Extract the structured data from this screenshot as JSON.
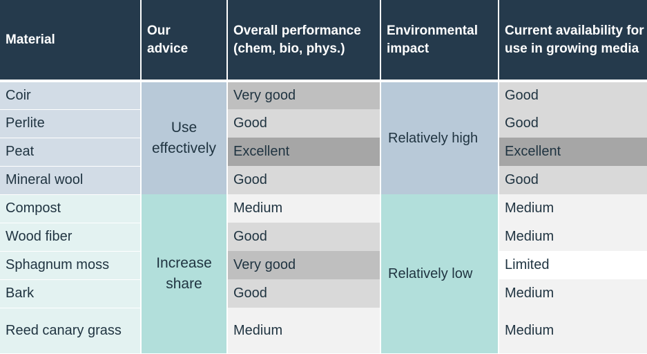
{
  "headers": {
    "material": "Material",
    "advice": "Our advice",
    "performance": "Overall performance (chem, bio, phys.)",
    "impact": "Environmental impact",
    "availability": "Current availability for use in growing media"
  },
  "groups": [
    {
      "advice": "Use effectively",
      "impact": "Relatively high",
      "rows": [
        {
          "material": "Coir",
          "performance": "Very good",
          "availability": "Good"
        },
        {
          "material": "Perlite",
          "performance": "Good",
          "availability": "Good"
        },
        {
          "material": "Peat",
          "performance": "Excellent",
          "availability": "Excellent"
        },
        {
          "material": "Mineral wool",
          "performance": "Good",
          "availability": "Good"
        }
      ]
    },
    {
      "advice": "Increase share",
      "impact": "Relatively low",
      "rows": [
        {
          "material": "Compost",
          "performance": "Medium",
          "availability": "Medium"
        },
        {
          "material": "Wood fiber",
          "performance": "Good",
          "availability": "Medium"
        },
        {
          "material": "Sphagnum moss",
          "performance": "Very good",
          "availability": "Limited"
        },
        {
          "material": "Bark",
          "performance": "Good",
          "availability": "Medium"
        },
        {
          "material": "Reed canary grass",
          "performance": "Medium",
          "availability": "Medium"
        }
      ]
    }
  ],
  "colors": {
    "header_bg": "#253a4c",
    "excellent": "#a6a6a6",
    "very_good": "#bfbfbf",
    "good": "#d9d9d9",
    "medium": "#f2f2f2",
    "limited": "#ffffff",
    "group_high": "#b8c9d8",
    "group_low": "#b2dfdb"
  }
}
